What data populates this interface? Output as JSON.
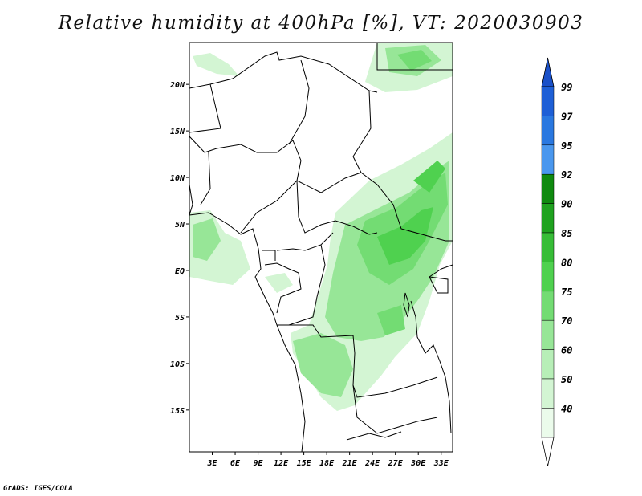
{
  "title": "Relative humidity at 400hPa [%], VT: 2020030903",
  "credit": "GrADS: IGES/COLA",
  "map": {
    "lat_range": [
      -19.5,
      24.5
    ],
    "lon_range": [
      0,
      34.5
    ],
    "lat_ticks": [
      {
        "value": 20,
        "label": "20N"
      },
      {
        "value": 15,
        "label": "15N"
      },
      {
        "value": 10,
        "label": "10N"
      },
      {
        "value": 5,
        "label": "5N"
      },
      {
        "value": 0,
        "label": "EQ"
      },
      {
        "value": -5,
        "label": "5S"
      },
      {
        "value": -10,
        "label": "10S"
      },
      {
        "value": -15,
        "label": "15S"
      }
    ],
    "lon_ticks": [
      {
        "value": 3,
        "label": "3E"
      },
      {
        "value": 6,
        "label": "6E"
      },
      {
        "value": 9,
        "label": "9E"
      },
      {
        "value": 12,
        "label": "12E"
      },
      {
        "value": 15,
        "label": "15E"
      },
      {
        "value": 18,
        "label": "18E"
      },
      {
        "value": 21,
        "label": "21E"
      },
      {
        "value": 24,
        "label": "24E"
      },
      {
        "value": 27,
        "label": "27E"
      },
      {
        "value": 30,
        "label": "30E"
      },
      {
        "value": 33,
        "label": "33E"
      }
    ]
  },
  "colorbar": {
    "levels": [
      {
        "label": "99",
        "color": "#1e5fd6"
      },
      {
        "label": "97",
        "color": "#2a78e0"
      },
      {
        "label": "95",
        "color": "#4a97ee"
      },
      {
        "label": "92",
        "color": "#0f8a0f"
      },
      {
        "label": "90",
        "color": "#1fa21f"
      },
      {
        "label": "85",
        "color": "#37bd37"
      },
      {
        "label": "80",
        "color": "#4fd14f"
      },
      {
        "label": "75",
        "color": "#73dc73"
      },
      {
        "label": "70",
        "color": "#97e697"
      },
      {
        "label": "60",
        "color": "#b7eeb7"
      },
      {
        "label": "50",
        "color": "#d3f5d3"
      },
      {
        "label": "40",
        "color": "#ebfbeb"
      }
    ],
    "bottom_color": "#ffffff",
    "top_color": "#1a50c8"
  }
}
